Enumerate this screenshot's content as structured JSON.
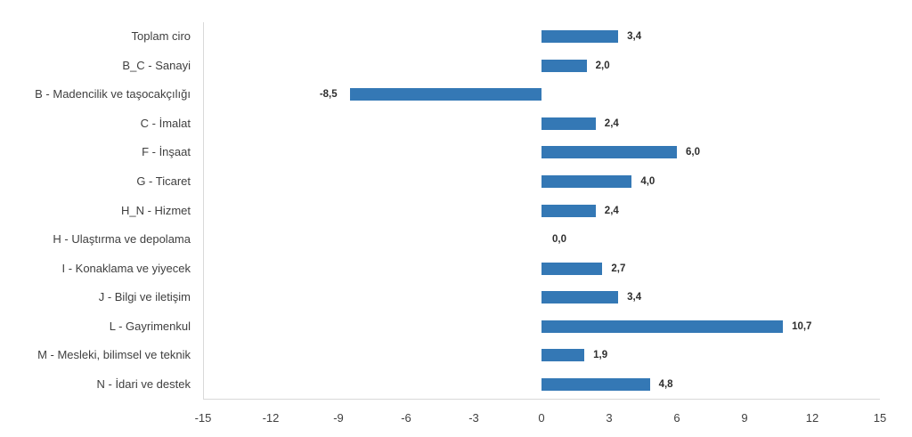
{
  "chart_data": {
    "type": "bar",
    "orientation": "horizontal",
    "title": "",
    "xlabel": "",
    "ylabel": "",
    "categories": [
      "Toplam ciro",
      "B_C - Sanayi",
      "B - Madencilik ve taşocakçılığı",
      "C - İmalat",
      "F - İnşaat",
      "G - Ticaret",
      "H_N - Hizmet",
      "H - Ulaştırma ve depolama",
      "I - Konaklama ve yiyecek",
      "J - Bilgi ve iletişim",
      "L - Gayrimenkul",
      "M - Mesleki, bilimsel ve teknik",
      "N - İdari ve destek"
    ],
    "values": [
      3.4,
      2.0,
      -8.5,
      2.4,
      6.0,
      4.0,
      2.4,
      0.0,
      2.7,
      3.4,
      10.7,
      1.9,
      4.8
    ],
    "value_labels": [
      "3,4",
      "2,0",
      "-8,5",
      "2,4",
      "6,0",
      "4,0",
      "2,4",
      "0,0",
      "2,7",
      "3,4",
      "10,7",
      "1,9",
      "4,8"
    ],
    "x_ticks": [
      -15,
      -12,
      -9,
      -6,
      -3,
      0,
      3,
      6,
      9,
      12,
      15
    ],
    "x_tick_labels": [
      "-15",
      "-12",
      "-9",
      "-6",
      "-3",
      "0",
      "3",
      "6",
      "9",
      "12",
      "15"
    ],
    "xlim": [
      -15,
      15
    ],
    "grid": false,
    "legend": "none",
    "bar_color": "#3478B5",
    "axis_line_color": "#d9d9d9",
    "category_label_color": "#3f3f3f",
    "value_label_color": "#2e2e2e"
  }
}
